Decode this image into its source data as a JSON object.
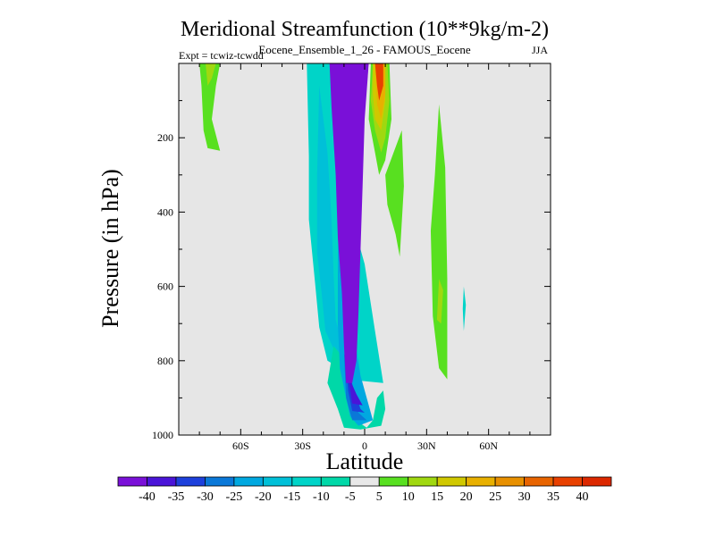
{
  "chart_data": {
    "type": "heatmap",
    "title": "Meridional Streamfunction (10**9kg/m-2)",
    "subtitle": "Eocene_Ensemble_1_26 - FAMOUS_Eocene",
    "expt_label": "Expt = tcwiz-tcwdd",
    "season": "JJA",
    "xlabel": "Latitude",
    "ylabel": "Pressure (in hPa)",
    "xlim": [
      -90,
      90
    ],
    "ylim": [
      1000,
      0
    ],
    "y_reversed": true,
    "x_ticks": [
      {
        "value": -60,
        "label": "60S"
      },
      {
        "value": -30,
        "label": "30S"
      },
      {
        "value": 0,
        "label": "0"
      },
      {
        "value": 30,
        "label": "30N"
      },
      {
        "value": 60,
        "label": "60N"
      }
    ],
    "y_ticks": [
      {
        "value": 200,
        "label": "200"
      },
      {
        "value": 400,
        "label": "400"
      },
      {
        "value": 600,
        "label": "600"
      },
      {
        "value": 800,
        "label": "800"
      },
      {
        "value": 1000,
        "label": "1000"
      }
    ],
    "background_color": "#e6e6e6",
    "colorbar": {
      "labels": [
        "-40",
        "-35",
        "-30",
        "-25",
        "-20",
        "-15",
        "-10",
        "-5",
        "5",
        "10",
        "15",
        "20",
        "25",
        "30",
        "35",
        "40"
      ],
      "colors": [
        "#7a10d8",
        "#4a14d8",
        "#1d40dc",
        "#0a78d8",
        "#00a8e0",
        "#00c0d8",
        "#00d4c8",
        "#00d8a8",
        "#e8e8e8",
        "#58e020",
        "#a0d810",
        "#d0c800",
        "#e8b000",
        "#e89000",
        "#e86400",
        "#e84000",
        "#dc2800"
      ]
    },
    "regions": [
      {
        "name": "neg-outer",
        "color_index": 6,
        "points": [
          [
            -28,
            0
          ],
          [
            -17,
            0
          ],
          [
            -13,
            100
          ],
          [
            -8,
            350
          ],
          [
            -3,
            480
          ],
          [
            0,
            540
          ],
          [
            5,
            720
          ],
          [
            9,
            860
          ],
          [
            -9,
            850
          ],
          [
            -12,
            820
          ],
          [
            -18,
            800
          ],
          [
            -22,
            710
          ],
          [
            -24,
            590
          ],
          [
            -27,
            420
          ],
          [
            -27,
            250
          ]
        ]
      },
      {
        "name": "neg-mid",
        "color_index": 5,
        "points": [
          [
            -22,
            60
          ],
          [
            -18,
            240
          ],
          [
            -16,
            420
          ],
          [
            -15,
            570
          ],
          [
            -14,
            690
          ],
          [
            -9,
            790
          ],
          [
            -14,
            780
          ],
          [
            -19,
            720
          ],
          [
            -21,
            610
          ],
          [
            -23,
            510
          ],
          [
            -23,
            300
          ]
        ]
      },
      {
        "name": "neg-tongue",
        "color_index": 7,
        "points": [
          [
            -15,
            760
          ],
          [
            -9,
            800
          ],
          [
            -7,
            870
          ],
          [
            -6,
            930
          ],
          [
            -3,
            965
          ],
          [
            1,
            980
          ],
          [
            4,
            960
          ],
          [
            6,
            900
          ],
          [
            9,
            880
          ],
          [
            10,
            930
          ],
          [
            8,
            975
          ],
          [
            -2,
            985
          ],
          [
            -10,
            980
          ],
          [
            -13,
            930
          ],
          [
            -18,
            860
          ]
        ]
      },
      {
        "name": "neg-narrow",
        "color_index": 4,
        "points": [
          [
            -12,
            400
          ],
          [
            -10,
            560
          ],
          [
            -6,
            700
          ],
          [
            -2,
            840
          ],
          [
            2,
            920
          ],
          [
            4,
            960
          ],
          [
            -3,
            975
          ],
          [
            -7,
            950
          ],
          [
            -9,
            900
          ],
          [
            -12,
            820
          ],
          [
            -13,
            700
          ],
          [
            -13,
            500
          ]
        ]
      },
      {
        "name": "neg-dark1",
        "color_index": 3,
        "points": [
          [
            -10,
            780
          ],
          [
            -6,
            870
          ],
          [
            -3,
            940
          ],
          [
            1,
            960
          ],
          [
            -6,
            960
          ],
          [
            -9,
            900
          ]
        ]
      },
      {
        "name": "neg-dark2",
        "color_index": 2,
        "points": [
          [
            -9,
            810
          ],
          [
            -5,
            880
          ],
          [
            -2,
            930
          ],
          [
            0,
            940
          ],
          [
            -6,
            935
          ],
          [
            -8,
            880
          ]
        ]
      },
      {
        "name": "neg-dark3",
        "color_index": 1,
        "points": [
          [
            -8,
            840
          ],
          [
            -4,
            890
          ],
          [
            -1,
            920
          ],
          [
            -6,
            915
          ]
        ]
      },
      {
        "name": "neg-core",
        "color_index": 0,
        "points": [
          [
            -17,
            0
          ],
          [
            2,
            0
          ],
          [
            0,
            150
          ],
          [
            -1,
            330
          ],
          [
            -2,
            500
          ],
          [
            -3,
            670
          ],
          [
            -4,
            800
          ],
          [
            -6,
            860
          ],
          [
            -9,
            860
          ],
          [
            -10,
            760
          ],
          [
            -11,
            620
          ],
          [
            -13,
            470
          ],
          [
            -14,
            300
          ],
          [
            -16,
            120
          ]
        ]
      },
      {
        "name": "zero-sliver",
        "color_index": 8,
        "points": [
          [
            2,
            0
          ],
          [
            3,
            0
          ],
          [
            1,
            150
          ],
          [
            1,
            300
          ],
          [
            2,
            360
          ],
          [
            1,
            340
          ],
          [
            0,
            200
          ]
        ]
      },
      {
        "name": "pos-north-green",
        "color_index": 9,
        "points": [
          [
            3,
            0
          ],
          [
            12,
            0
          ],
          [
            13,
            150
          ],
          [
            10,
            260
          ],
          [
            7,
            300
          ],
          [
            5,
            240
          ],
          [
            2,
            150
          ]
        ]
      },
      {
        "name": "pos-north-yellowgreen",
        "color_index": 10,
        "points": [
          [
            4,
            0
          ],
          [
            11,
            0
          ],
          [
            12,
            100
          ],
          [
            10,
            200
          ],
          [
            8,
            240
          ],
          [
            5,
            180
          ],
          [
            3,
            100
          ]
        ]
      },
      {
        "name": "pos-north-yellow",
        "color_index": 11,
        "points": [
          [
            4,
            0
          ],
          [
            10,
            0
          ],
          [
            10,
            100
          ],
          [
            8,
            180
          ],
          [
            5,
            150
          ],
          [
            4,
            80
          ]
        ]
      },
      {
        "name": "pos-north-orange",
        "color_index": 12,
        "points": [
          [
            5,
            0
          ],
          [
            10,
            0
          ],
          [
            10,
            80
          ],
          [
            8,
            150
          ],
          [
            6,
            110
          ]
        ]
      },
      {
        "name": "pos-north-red",
        "color_index": 15,
        "points": [
          [
            5,
            0
          ],
          [
            9,
            0
          ],
          [
            9,
            60
          ],
          [
            7,
            100
          ],
          [
            6,
            60
          ]
        ]
      }
    ]
  }
}
